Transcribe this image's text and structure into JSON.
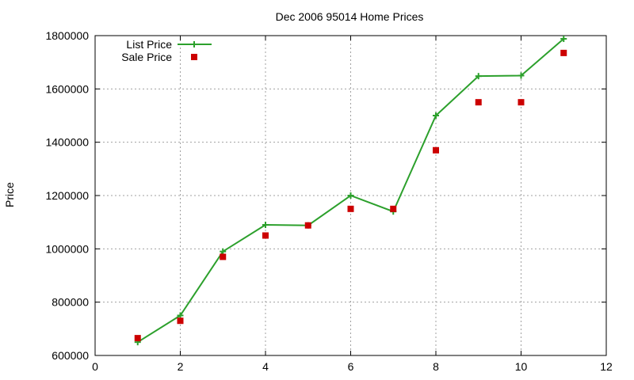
{
  "chart_data": {
    "type": "line",
    "title": "Dec 2006 95014 Home Prices",
    "xlabel": "",
    "ylabel": "Price",
    "xlim": [
      0,
      12
    ],
    "ylim": [
      600000,
      1800000
    ],
    "x_ticks": [
      0,
      2,
      4,
      6,
      8,
      10,
      12
    ],
    "y_ticks": [
      600000,
      800000,
      1000000,
      1200000,
      1400000,
      1600000,
      1800000
    ],
    "grid": true,
    "legend_position": "top-left",
    "series": [
      {
        "name": "List Price",
        "style": "line-with-plus-markers",
        "color": "#2ca02c",
        "x": [
          1,
          2,
          3,
          4,
          5,
          6,
          7,
          8,
          9,
          10,
          11
        ],
        "y": [
          650000,
          750000,
          990000,
          1090000,
          1088000,
          1200000,
          1140000,
          1500000,
          1648000,
          1650000,
          1788000
        ]
      },
      {
        "name": "Sale Price",
        "style": "square-markers",
        "color": "#cc0000",
        "x": [
          1,
          2,
          3,
          4,
          5,
          6,
          7,
          8,
          9,
          10,
          11
        ],
        "y": [
          665000,
          730000,
          970000,
          1050000,
          1088000,
          1150000,
          1150000,
          1370000,
          1550000,
          1550000,
          1735000
        ]
      }
    ]
  }
}
